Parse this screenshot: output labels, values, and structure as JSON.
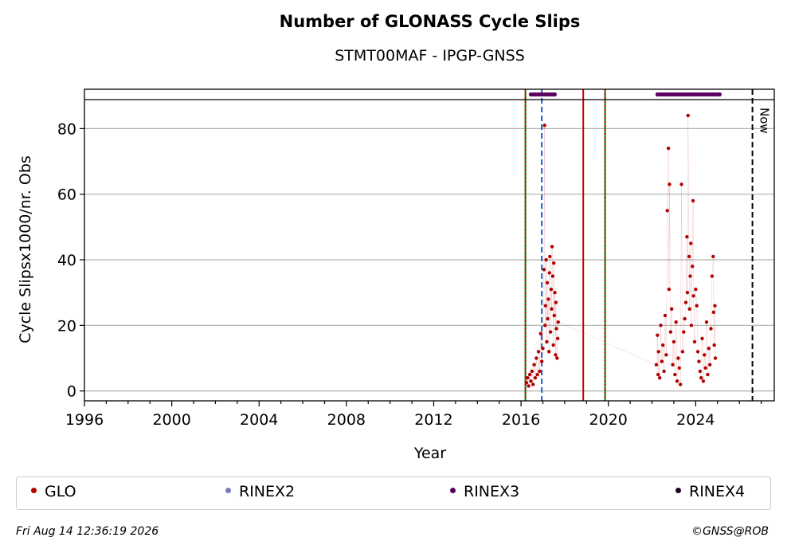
{
  "chart_data": {
    "type": "scatter",
    "title": "Number of GLONASS Cycle Slips",
    "subtitle": "STMT00MAF - IPGP-GNSS",
    "xlabel": "Year",
    "ylabel": "Cycle Slipsx1000/nr. Obs",
    "xlim": [
      1996,
      2027.6
    ],
    "ylim": [
      -3,
      92
    ],
    "x_ticks": [
      "1996",
      "2000",
      "2004",
      "2008",
      "2012",
      "2016",
      "2020",
      "2024"
    ],
    "y_ticks": [
      "0",
      "20",
      "40",
      "60",
      "80"
    ],
    "grid": "horizontal",
    "now_label": "Now",
    "now_year": 2026.6,
    "vlines": [
      {
        "x": 2016.2,
        "color": "#008000",
        "style": "solid"
      },
      {
        "x": 2016.2,
        "color": "#cc0000",
        "style": "dotted"
      },
      {
        "x": 2016.95,
        "color": "#1f5fbf",
        "style": "dashed"
      },
      {
        "x": 2018.85,
        "color": "#cc0000",
        "style": "solid"
      },
      {
        "x": 2019.85,
        "color": "#008000",
        "style": "solid"
      },
      {
        "x": 2019.85,
        "color": "#cc0000",
        "style": "dotted"
      }
    ],
    "rinex3_periods": [
      [
        2016.45,
        2017.6
      ],
      [
        2022.25,
        2025.1
      ]
    ],
    "series": [
      {
        "name": "GLO",
        "color": "#b30000",
        "marker": "dot",
        "points": [
          [
            2016.25,
            2.5
          ],
          [
            2016.3,
            4
          ],
          [
            2016.35,
            1.5
          ],
          [
            2016.4,
            5
          ],
          [
            2016.45,
            3
          ],
          [
            2016.5,
            6
          ],
          [
            2016.55,
            2
          ],
          [
            2016.6,
            8
          ],
          [
            2016.65,
            4
          ],
          [
            2016.7,
            10
          ],
          [
            2016.75,
            5
          ],
          [
            2016.8,
            12
          ],
          [
            2016.85,
            6
          ],
          [
            2016.9,
            17.5
          ],
          [
            2016.95,
            9
          ],
          [
            2017.0,
            13
          ],
          [
            2017.05,
            37
          ],
          [
            2017.08,
            81
          ],
          [
            2017.1,
            20
          ],
          [
            2017.12,
            26
          ],
          [
            2017.15,
            40
          ],
          [
            2017.18,
            15
          ],
          [
            2017.2,
            33
          ],
          [
            2017.22,
            22
          ],
          [
            2017.25,
            28
          ],
          [
            2017.28,
            12
          ],
          [
            2017.3,
            36
          ],
          [
            2017.32,
            41
          ],
          [
            2017.35,
            18
          ],
          [
            2017.38,
            31
          ],
          [
            2017.4,
            25
          ],
          [
            2017.42,
            44
          ],
          [
            2017.45,
            35
          ],
          [
            2017.48,
            14
          ],
          [
            2017.5,
            39
          ],
          [
            2017.52,
            23
          ],
          [
            2017.55,
            30
          ],
          [
            2017.58,
            11
          ],
          [
            2017.6,
            27
          ],
          [
            2017.62,
            19
          ],
          [
            2017.65,
            10
          ],
          [
            2017.68,
            16
          ],
          [
            2017.7,
            21
          ],
          [
            2022.2,
            8
          ],
          [
            2022.25,
            17
          ],
          [
            2022.28,
            5
          ],
          [
            2022.3,
            12
          ],
          [
            2022.35,
            4
          ],
          [
            2022.4,
            20
          ],
          [
            2022.45,
            9
          ],
          [
            2022.5,
            14
          ],
          [
            2022.55,
            6
          ],
          [
            2022.6,
            23
          ],
          [
            2022.65,
            11
          ],
          [
            2022.7,
            55
          ],
          [
            2022.75,
            74
          ],
          [
            2022.78,
            31
          ],
          [
            2022.8,
            63
          ],
          [
            2022.85,
            18
          ],
          [
            2022.9,
            25
          ],
          [
            2022.95,
            8
          ],
          [
            2023.0,
            15
          ],
          [
            2023.05,
            5
          ],
          [
            2023.1,
            21
          ],
          [
            2023.15,
            3
          ],
          [
            2023.2,
            10
          ],
          [
            2023.25,
            7
          ],
          [
            2023.3,
            2
          ],
          [
            2023.35,
            63
          ],
          [
            2023.4,
            12
          ],
          [
            2023.45,
            18
          ],
          [
            2023.5,
            22
          ],
          [
            2023.55,
            27
          ],
          [
            2023.6,
            47
          ],
          [
            2023.62,
            30
          ],
          [
            2023.65,
            84
          ],
          [
            2023.7,
            41
          ],
          [
            2023.72,
            25
          ],
          [
            2023.75,
            35
          ],
          [
            2023.78,
            45
          ],
          [
            2023.8,
            20
          ],
          [
            2023.85,
            38
          ],
          [
            2023.88,
            58
          ],
          [
            2023.9,
            29
          ],
          [
            2023.95,
            15
          ],
          [
            2024.0,
            31
          ],
          [
            2024.05,
            26
          ],
          [
            2024.1,
            12
          ],
          [
            2024.15,
            9
          ],
          [
            2024.2,
            6
          ],
          [
            2024.25,
            4
          ],
          [
            2024.3,
            16
          ],
          [
            2024.35,
            3
          ],
          [
            2024.4,
            11
          ],
          [
            2024.45,
            7
          ],
          [
            2024.5,
            21
          ],
          [
            2024.55,
            5
          ],
          [
            2024.6,
            13
          ],
          [
            2024.65,
            8
          ],
          [
            2024.7,
            19
          ],
          [
            2024.75,
            35
          ],
          [
            2024.8,
            41
          ],
          [
            2024.82,
            24
          ],
          [
            2024.85,
            14
          ],
          [
            2024.88,
            26
          ],
          [
            2024.9,
            10
          ]
        ]
      }
    ],
    "legend": [
      "GLO",
      "RINEX2",
      "RINEX3",
      "RINEX4"
    ],
    "legend_colors": [
      "#b30000",
      "#7b7bc4",
      "#5c0060",
      "#1a0020"
    ],
    "legend_position": "bottom"
  },
  "footer": {
    "timestamp": "Fri Aug 14 12:36:19 2026",
    "credit": "©GNSS@ROB"
  }
}
